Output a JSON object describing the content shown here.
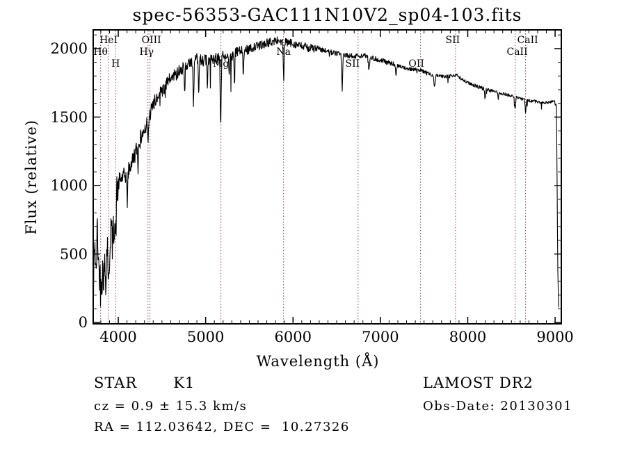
{
  "chart_data": {
    "type": "line",
    "title": "spec-56353-GAC111N10V2_sp04-103.fits",
    "xlabel": "Wavelength (Å)",
    "ylabel": "Flux (relative)",
    "xlim": [
      3713,
      9071
    ],
    "ylim": [
      -10,
      2137
    ],
    "x_ticks": [
      4000,
      5000,
      6000,
      7000,
      8000,
      9000
    ],
    "y_ticks": [
      0,
      500,
      1000,
      1500,
      2000
    ],
    "x_minor_step": 100,
    "y_minor_step": 100,
    "grid": false,
    "trace_color": "#000000",
    "marker_color": "#8a3b3f",
    "line_markers": [
      {
        "label": "Hθ",
        "wavelength": 3798,
        "row": 2,
        "dx": 0
      },
      {
        "label": "HeI",
        "wavelength": 3889,
        "row": 1,
        "dx": 0
      },
      {
        "label": "H",
        "wavelength": 3970,
        "row": 3,
        "dx": 0
      },
      {
        "label": "Hγ",
        "wavelength": 4340,
        "row": 2,
        "dx": -2
      },
      {
        "label": "OIII",
        "wavelength": 4363,
        "row": 1,
        "dx": 2
      },
      {
        "label": "Mg",
        "wavelength": 5175,
        "row": 3,
        "dx": 0
      },
      {
        "label": "Na",
        "wavelength": 5892,
        "row": 2,
        "dx": 0
      },
      {
        "label": "SII",
        "wavelength": 6745,
        "row": 3,
        "dx": -8
      },
      {
        "label": "OII",
        "wavelength": 7460,
        "row": 3,
        "dx": -6
      },
      {
        "label": "SII",
        "wavelength": 7860,
        "row": 1,
        "dx": -4
      },
      {
        "label": "CaII",
        "wavelength": 8542,
        "row": 2,
        "dx": 3
      },
      {
        "label": "CaII",
        "wavelength": 8662,
        "row": 1,
        "dx": 3
      }
    ],
    "spectrum": {
      "seed": 42,
      "envelope": [
        [
          3713,
          100
        ],
        [
          3730,
          650
        ],
        [
          3745,
          300
        ],
        [
          3760,
          700
        ],
        [
          3780,
          350
        ],
        [
          3800,
          520
        ],
        [
          3815,
          300
        ],
        [
          3835,
          560
        ],
        [
          3855,
          320
        ],
        [
          3875,
          600
        ],
        [
          3895,
          420
        ],
        [
          3915,
          720
        ],
        [
          3935,
          560
        ],
        [
          3960,
          800
        ],
        [
          3985,
          950
        ],
        [
          4010,
          1030
        ],
        [
          4050,
          1060
        ],
        [
          4100,
          1080
        ],
        [
          4160,
          1180
        ],
        [
          4220,
          1280
        ],
        [
          4280,
          1380
        ],
        [
          4340,
          1480
        ],
        [
          4420,
          1620
        ],
        [
          4500,
          1690
        ],
        [
          4600,
          1780
        ],
        [
          4700,
          1840
        ],
        [
          4800,
          1880
        ],
        [
          4900,
          1930
        ],
        [
          5000,
          1910
        ],
        [
          5100,
          1930
        ],
        [
          5200,
          1950
        ],
        [
          5300,
          1955
        ],
        [
          5400,
          1985
        ],
        [
          5500,
          2000
        ],
        [
          5600,
          2020
        ],
        [
          5700,
          2040
        ],
        [
          5820,
          2060
        ],
        [
          5900,
          2045
        ],
        [
          6000,
          2040
        ],
        [
          6100,
          2015
        ],
        [
          6250,
          2000
        ],
        [
          6400,
          1980
        ],
        [
          6550,
          1955
        ],
        [
          6700,
          1945
        ],
        [
          6820,
          1950
        ],
        [
          6900,
          1935
        ],
        [
          7000,
          1915
        ],
        [
          7150,
          1885
        ],
        [
          7300,
          1855
        ],
        [
          7450,
          1845
        ],
        [
          7600,
          1805
        ],
        [
          7750,
          1795
        ],
        [
          7870,
          1805
        ],
        [
          8000,
          1750
        ],
        [
          8150,
          1715
        ],
        [
          8300,
          1685
        ],
        [
          8450,
          1665
        ],
        [
          8600,
          1635
        ],
        [
          8750,
          1615
        ],
        [
          8900,
          1605
        ],
        [
          8990,
          1615
        ],
        [
          9015,
          1580
        ],
        [
          9022,
          1100
        ],
        [
          9030,
          400
        ],
        [
          9040,
          120
        ]
      ],
      "noise_segments": [
        [
          3713,
          4000,
          150
        ],
        [
          4000,
          4300,
          65
        ],
        [
          4300,
          4700,
          55
        ],
        [
          4700,
          5500,
          45
        ],
        [
          5500,
          6300,
          33
        ],
        [
          6300,
          7200,
          20
        ],
        [
          7200,
          8300,
          14
        ],
        [
          8300,
          9071,
          12
        ]
      ],
      "absorption_dips": [
        [
          3798,
          250,
          5
        ],
        [
          3835,
          220,
          5
        ],
        [
          3889,
          230,
          5
        ],
        [
          3970,
          260,
          5
        ],
        [
          4102,
          200,
          5
        ],
        [
          4227,
          150,
          4
        ],
        [
          4340,
          180,
          5
        ],
        [
          4760,
          200,
          4
        ],
        [
          4861,
          320,
          5
        ],
        [
          4920,
          250,
          4
        ],
        [
          5020,
          200,
          4
        ],
        [
          5172,
          480,
          6
        ],
        [
          5270,
          180,
          5
        ],
        [
          5330,
          250,
          4
        ],
        [
          5430,
          180,
          4
        ],
        [
          5893,
          270,
          5
        ],
        [
          6563,
          260,
          5
        ],
        [
          6870,
          90,
          8
        ],
        [
          7180,
          60,
          6
        ],
        [
          7620,
          70,
          8
        ],
        [
          8200,
          60,
          5
        ],
        [
          8350,
          50,
          4
        ],
        [
          8542,
          95,
          5
        ],
        [
          8662,
          90,
          5
        ]
      ]
    }
  },
  "footer": {
    "class_label": "STAR",
    "subclass": "K1",
    "cz_line": "cz = 0.9 ± 15.3 km/s",
    "radec_line": "RA = 112.03642, DEC =  10.27326",
    "survey": "LAMOST DR2",
    "obsdate_line": "Obs-Date: 20130301"
  }
}
